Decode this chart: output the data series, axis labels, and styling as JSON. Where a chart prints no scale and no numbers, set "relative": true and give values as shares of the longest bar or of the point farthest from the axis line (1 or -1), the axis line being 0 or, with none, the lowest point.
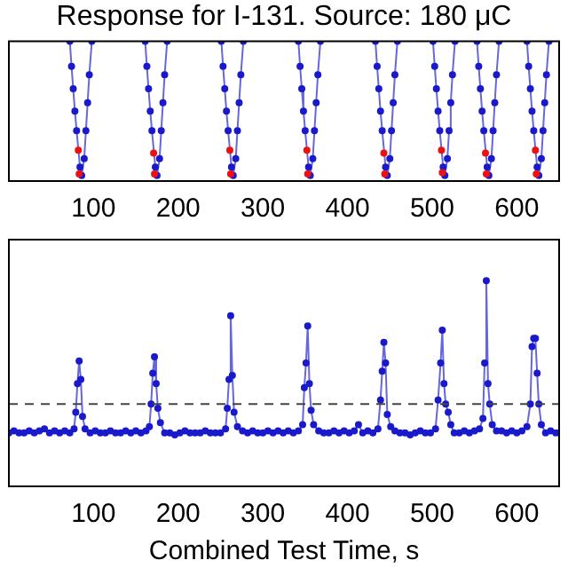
{
  "chart_data": [
    {
      "type": "line",
      "title": "Response for I-131. Source: 180 μC",
      "relative": true,
      "xlim": [
        0,
        650
      ],
      "xticks": [
        100,
        200,
        300,
        400,
        500,
        600
      ],
      "marker": "circle",
      "line_style": "solid",
      "series": [
        {
          "type": "line",
          "color": "#1a1acc",
          "x": [
            72,
            74,
            76,
            78,
            80,
            84,
            86,
            89,
            91,
            93,
            95,
            98,
            130,
            161,
            163,
            165,
            167,
            169,
            173,
            175,
            178,
            180,
            182,
            184,
            187,
            220,
            251,
            253,
            255,
            257,
            259,
            263,
            265,
            268,
            270,
            272,
            274,
            277,
            310,
            342,
            344,
            346,
            348,
            350,
            354,
            356,
            359,
            361,
            363,
            365,
            368,
            400,
            433,
            435,
            437,
            439,
            441,
            445,
            447,
            450,
            452,
            454,
            456,
            459,
            480,
            501,
            503,
            505,
            507,
            509,
            513,
            515,
            518,
            520,
            522,
            524,
            527,
            540,
            553,
            555,
            557,
            559,
            561,
            565,
            567,
            570,
            572,
            574,
            576,
            579,
            595,
            612,
            614,
            616,
            618,
            620,
            624,
            626,
            629,
            631,
            633,
            635,
            638
          ],
          "values": [
            1,
            0.82,
            0.66,
            0.5,
            0.36,
            0.1,
            0.04,
            0.16,
            0.36,
            0.56,
            0.76,
            1,
            null,
            1,
            0.82,
            0.66,
            0.5,
            0.36,
            0.1,
            0.04,
            0.16,
            0.36,
            0.56,
            0.76,
            1,
            null,
            1,
            0.82,
            0.66,
            0.5,
            0.36,
            0.1,
            0.04,
            0.16,
            0.36,
            0.56,
            0.76,
            1,
            null,
            1,
            0.82,
            0.66,
            0.5,
            0.36,
            0.1,
            0.04,
            0.16,
            0.36,
            0.56,
            0.76,
            1,
            null,
            1,
            0.82,
            0.66,
            0.5,
            0.36,
            0.1,
            0.04,
            0.16,
            0.36,
            0.56,
            0.76,
            1,
            null,
            1,
            0.82,
            0.66,
            0.5,
            0.36,
            0.1,
            0.04,
            0.16,
            0.36,
            0.56,
            0.76,
            1,
            null,
            1,
            0.82,
            0.66,
            0.5,
            0.36,
            0.1,
            0.04,
            0.16,
            0.36,
            0.56,
            0.76,
            1,
            null,
            1,
            0.82,
            0.66,
            0.5,
            0.36,
            0.1,
            0.04,
            0.16,
            0.36,
            0.56,
            0.76,
            1
          ]
        },
        {
          "type": "scatter",
          "color": "#ee1111",
          "x": [
            82,
            83,
            171,
            172,
            261,
            262,
            352,
            353,
            443,
            444,
            511,
            512,
            563,
            564,
            622,
            623
          ],
          "values": [
            0.22,
            0.05,
            0.2,
            0.05,
            0.22,
            0.05,
            0.22,
            0.05,
            0.2,
            0.05,
            0.22,
            0.06,
            0.2,
            0.05,
            0.22,
            0.05
          ]
        }
      ]
    },
    {
      "type": "line",
      "xlabel": "Combined Test Time, s",
      "relative": true,
      "xlim": [
        0,
        650
      ],
      "xticks": [
        100,
        200,
        300,
        400,
        500,
        600
      ],
      "marker": "circle",
      "line_style": "solid",
      "ref_lines": [
        {
          "axis": "y",
          "value": 0.4,
          "color": "#444444",
          "line_style": "dashed"
        }
      ],
      "series": [
        {
          "type": "line",
          "color": "#1a1acc",
          "x": [
            0,
            6,
            12,
            18,
            24,
            30,
            36,
            42,
            48,
            54,
            60,
            66,
            72,
            77,
            79,
            81,
            83,
            85,
            87,
            90,
            96,
            102,
            108,
            114,
            120,
            126,
            132,
            138,
            144,
            150,
            156,
            162,
            166,
            168,
            170,
            172,
            174,
            176,
            179,
            184,
            190,
            196,
            202,
            208,
            214,
            220,
            226,
            232,
            238,
            244,
            250,
            256,
            258,
            260,
            262,
            264,
            266,
            270,
            276,
            282,
            288,
            294,
            300,
            306,
            312,
            318,
            324,
            330,
            336,
            342,
            347,
            349,
            351,
            353,
            355,
            357,
            360,
            366,
            372,
            378,
            384,
            390,
            396,
            402,
            408,
            413,
            418,
            424,
            430,
            436,
            439,
            441,
            443,
            445,
            447,
            451,
            456,
            462,
            468,
            474,
            480,
            486,
            492,
            498,
            504,
            507,
            510,
            512,
            514,
            516,
            519,
            522,
            526,
            532,
            538,
            544,
            550,
            556,
            560,
            562,
            564,
            566,
            568,
            571,
            576,
            582,
            588,
            594,
            600,
            606,
            612,
            616,
            618,
            620,
            622,
            624,
            626,
            629,
            634,
            640,
            646,
            650
          ],
          "values": [
            0.26,
            0.27,
            0.26,
            0.26,
            0.27,
            0.26,
            0.27,
            0.28,
            0.26,
            0.27,
            0.26,
            0.27,
            0.26,
            0.28,
            0.36,
            0.5,
            0.61,
            0.52,
            0.34,
            0.28,
            0.26,
            0.27,
            0.26,
            0.26,
            0.27,
            0.26,
            0.26,
            0.27,
            0.26,
            0.27,
            0.26,
            0.27,
            0.29,
            0.4,
            0.55,
            0.63,
            0.5,
            0.38,
            0.31,
            0.26,
            0.26,
            0.25,
            0.26,
            0.27,
            0.26,
            0.26,
            0.26,
            0.27,
            0.26,
            0.26,
            0.26,
            0.28,
            0.38,
            0.52,
            0.83,
            0.54,
            0.36,
            0.29,
            0.27,
            0.26,
            0.27,
            0.26,
            0.26,
            0.27,
            0.26,
            0.27,
            0.26,
            0.27,
            0.26,
            0.27,
            0.3,
            0.48,
            0.6,
            0.78,
            0.5,
            0.37,
            0.3,
            0.27,
            0.26,
            0.26,
            0.27,
            0.26,
            0.27,
            0.26,
            0.27,
            0.3,
            0.26,
            0.27,
            0.26,
            0.28,
            0.42,
            0.56,
            0.7,
            0.6,
            0.35,
            0.29,
            0.27,
            0.26,
            0.26,
            0.25,
            0.26,
            0.27,
            0.26,
            0.26,
            0.28,
            0.42,
            0.6,
            0.76,
            0.5,
            0.4,
            0.36,
            0.3,
            0.26,
            0.26,
            0.27,
            0.26,
            0.27,
            0.28,
            0.33,
            0.6,
            1.0,
            0.5,
            0.4,
            0.3,
            0.27,
            0.27,
            0.26,
            0.27,
            0.26,
            0.27,
            0.29,
            0.4,
            0.68,
            0.72,
            0.72,
            0.55,
            0.4,
            0.3,
            0.26,
            0.27,
            0.26,
            0.26
          ]
        }
      ]
    }
  ]
}
